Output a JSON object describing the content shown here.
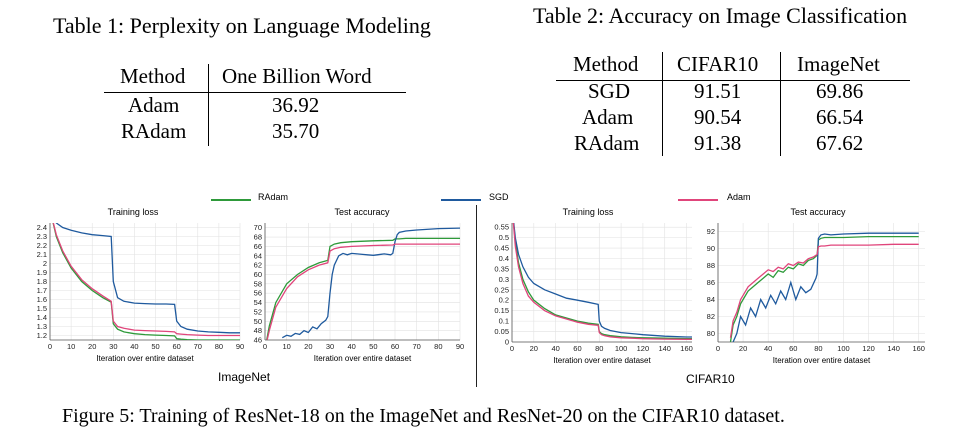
{
  "table1": {
    "caption": "Table 1: Perplexity on Language Modeling",
    "headers": [
      "Method",
      "One Billion Word"
    ],
    "rows": [
      [
        "Adam",
        "36.92"
      ],
      [
        "RAdam",
        "35.70"
      ]
    ]
  },
  "table2": {
    "caption": "Table 2: Accuracy on Image Classification",
    "headers": [
      "Method",
      "CIFAR10",
      "ImageNet"
    ],
    "rows": [
      [
        "SGD",
        "91.51",
        "69.86"
      ],
      [
        "Adam",
        "90.54",
        "66.54"
      ],
      [
        "RAdam",
        "91.38",
        "67.62"
      ]
    ]
  },
  "legend": [
    {
      "name": "RAdam",
      "color": "#2e9a3a"
    },
    {
      "name": "SGD",
      "color": "#1f5a9e"
    },
    {
      "name": "Adam",
      "color": "#e0457b"
    }
  ],
  "group_labels": {
    "imagenet": "ImageNet",
    "cifar": "CIFAR10"
  },
  "figure_caption": "Figure 5: Training of ResNet-18 on the ImageNet and ResNet-20 on the CIFAR10 dataset.",
  "chart_data": [
    {
      "type": "line",
      "title": "Training loss",
      "xlabel": "Iteration over entire dataset",
      "ylabel": "",
      "xlim": [
        0,
        90
      ],
      "ylim": [
        1.15,
        2.45
      ],
      "xticks": [
        "0",
        "10",
        "20",
        "30",
        "40",
        "50",
        "60",
        "70",
        "80",
        "90"
      ],
      "yticks": [
        "1.2",
        "1.3",
        "1.4",
        "1.5",
        "1.6",
        "1.7",
        "1.8",
        "1.9",
        "2",
        "2.1",
        "2.2",
        "2.3",
        "2.4"
      ],
      "grid": true,
      "series": [
        {
          "name": "RAdam",
          "color": "#2e9a3a",
          "x": [
            0,
            3,
            6,
            10,
            15,
            20,
            25,
            29,
            30,
            32,
            35,
            40,
            45,
            50,
            55,
            59,
            60,
            62,
            65,
            70,
            75,
            80,
            85,
            90
          ],
          "y": [
            2.6,
            2.3,
            2.12,
            1.95,
            1.8,
            1.7,
            1.62,
            1.57,
            1.33,
            1.27,
            1.24,
            1.22,
            1.21,
            1.205,
            1.2,
            1.195,
            1.165,
            1.16,
            1.155,
            1.15,
            1.15,
            1.15,
            1.15,
            1.15
          ]
        },
        {
          "name": "SGD",
          "color": "#1f5a9e",
          "x": [
            0,
            3,
            6,
            10,
            15,
            20,
            25,
            29,
            30,
            32,
            35,
            40,
            45,
            50,
            55,
            59,
            60,
            62,
            65,
            70,
            75,
            80,
            85,
            90
          ],
          "y": [
            2.6,
            2.45,
            2.4,
            2.37,
            2.34,
            2.32,
            2.31,
            2.3,
            1.8,
            1.62,
            1.58,
            1.56,
            1.555,
            1.55,
            1.55,
            1.545,
            1.36,
            1.3,
            1.27,
            1.25,
            1.24,
            1.235,
            1.23,
            1.23
          ]
        },
        {
          "name": "Adam",
          "color": "#e0457b",
          "x": [
            0,
            3,
            6,
            10,
            15,
            20,
            25,
            29,
            30,
            32,
            35,
            40,
            45,
            50,
            55,
            59,
            60,
            62,
            65,
            70,
            75,
            80,
            85,
            90
          ],
          "y": [
            2.6,
            2.32,
            2.14,
            1.97,
            1.82,
            1.72,
            1.64,
            1.58,
            1.36,
            1.3,
            1.28,
            1.26,
            1.255,
            1.25,
            1.245,
            1.24,
            1.22,
            1.215,
            1.21,
            1.205,
            1.2,
            1.2,
            1.2,
            1.2
          ]
        }
      ]
    },
    {
      "type": "line",
      "title": "Test accuracy",
      "xlabel": "Iteration over entire dataset",
      "ylabel": "",
      "xlim": [
        0,
        90
      ],
      "ylim": [
        46,
        71
      ],
      "xticks": [
        "0",
        "10",
        "20",
        "30",
        "40",
        "50",
        "60",
        "70",
        "80",
        "90"
      ],
      "yticks": [
        "46",
        "48",
        "50",
        "52",
        "54",
        "56",
        "58",
        "60",
        "62",
        "64",
        "66",
        "68",
        "70"
      ],
      "grid": true,
      "series": [
        {
          "name": "RAdam",
          "color": "#2e9a3a",
          "x": [
            0,
            2,
            5,
            10,
            15,
            20,
            25,
            29,
            30,
            32,
            35,
            40,
            50,
            59,
            60,
            62,
            65,
            70,
            80,
            90
          ],
          "y": [
            44,
            49,
            54,
            58,
            60,
            61.5,
            62.5,
            63,
            66,
            66.5,
            66.8,
            67,
            67.2,
            67.3,
            67.6,
            67.6,
            67.7,
            67.7,
            67.7,
            67.7
          ]
        },
        {
          "name": "SGD",
          "color": "#1f5a9e",
          "x": [
            8,
            10,
            12,
            14,
            16,
            18,
            20,
            22,
            24,
            26,
            28,
            29,
            30,
            31,
            32,
            34,
            36,
            38,
            40,
            45,
            50,
            55,
            58,
            59,
            60,
            61,
            62,
            65,
            70,
            80,
            90
          ],
          "y": [
            46.5,
            47,
            46.8,
            47.4,
            47.2,
            48,
            47.6,
            48.8,
            48.4,
            49.5,
            50.2,
            51,
            56,
            60,
            62,
            64,
            64.5,
            64.2,
            64.5,
            64.3,
            64.1,
            64.4,
            64.2,
            64.5,
            67,
            68.5,
            69,
            69.3,
            69.5,
            69.8,
            69.9
          ]
        },
        {
          "name": "Adam",
          "color": "#e0457b",
          "x": [
            0,
            2,
            5,
            10,
            15,
            20,
            25,
            29,
            30,
            32,
            35,
            40,
            50,
            59,
            60,
            62,
            65,
            70,
            80,
            90
          ],
          "y": [
            44,
            48,
            53,
            57,
            59.5,
            61,
            62,
            62.5,
            65,
            65.5,
            65.8,
            66,
            66.2,
            66.3,
            66.5,
            66.5,
            66.5,
            66.5,
            66.5,
            66.5
          ]
        }
      ]
    },
    {
      "type": "line",
      "title": "Training loss",
      "xlabel": "Iteration over entire dataset",
      "ylabel": "",
      "xlim": [
        0,
        165
      ],
      "ylim": [
        0,
        0.57
      ],
      "xticks": [
        "0",
        "20",
        "40",
        "60",
        "80",
        "100",
        "120",
        "140",
        "160"
      ],
      "yticks": [
        "0",
        "0.05",
        "0.1",
        "0.15",
        "0.2",
        "0.25",
        "0.3",
        "0.35",
        "0.4",
        "0.45",
        "0.5",
        "0.55"
      ],
      "grid": true,
      "series": [
        {
          "name": "RAdam",
          "color": "#2e9a3a",
          "x": [
            0,
            3,
            6,
            10,
            15,
            20,
            30,
            40,
            50,
            60,
            70,
            79,
            80,
            82,
            85,
            90,
            100,
            110,
            120,
            140,
            160,
            165
          ],
          "y": [
            0.65,
            0.48,
            0.38,
            0.3,
            0.24,
            0.2,
            0.16,
            0.13,
            0.115,
            0.1,
            0.09,
            0.085,
            0.05,
            0.04,
            0.035,
            0.03,
            0.025,
            0.022,
            0.02,
            0.018,
            0.016,
            0.016
          ]
        },
        {
          "name": "SGD",
          "color": "#1f5a9e",
          "x": [
            0,
            3,
            6,
            10,
            15,
            20,
            30,
            40,
            50,
            60,
            70,
            79,
            80,
            82,
            85,
            90,
            100,
            110,
            120,
            140,
            160,
            165
          ],
          "y": [
            0.65,
            0.5,
            0.42,
            0.36,
            0.31,
            0.28,
            0.25,
            0.23,
            0.21,
            0.2,
            0.19,
            0.18,
            0.1,
            0.075,
            0.065,
            0.055,
            0.045,
            0.04,
            0.035,
            0.028,
            0.024,
            0.024
          ]
        },
        {
          "name": "Adam",
          "color": "#e0457b",
          "x": [
            0,
            3,
            6,
            10,
            15,
            20,
            30,
            40,
            50,
            60,
            70,
            79,
            80,
            82,
            85,
            90,
            100,
            110,
            120,
            140,
            160,
            165
          ],
          "y": [
            0.65,
            0.46,
            0.36,
            0.28,
            0.22,
            0.19,
            0.15,
            0.125,
            0.11,
            0.095,
            0.085,
            0.08,
            0.045,
            0.035,
            0.03,
            0.025,
            0.02,
            0.018,
            0.016,
            0.014,
            0.013,
            0.013
          ]
        }
      ]
    },
    {
      "type": "line",
      "title": "Test accuracy",
      "xlabel": "Iteration over entire dataset",
      "ylabel": "",
      "xlim": [
        0,
        165
      ],
      "ylim": [
        79,
        93
      ],
      "xticks": [
        "0",
        "20",
        "40",
        "60",
        "80",
        "100",
        "120",
        "140",
        "160"
      ],
      "yticks": [
        "80",
        "82",
        "84",
        "86",
        "88",
        "90",
        "92"
      ],
      "grid": true,
      "series": [
        {
          "name": "RAdam",
          "color": "#2e9a3a",
          "x": [
            10,
            12,
            15,
            18,
            20,
            24,
            28,
            32,
            36,
            40,
            44,
            48,
            52,
            56,
            60,
            64,
            68,
            72,
            76,
            79,
            80,
            82,
            85,
            90,
            100,
            120,
            140,
            160
          ],
          "y": [
            79,
            81,
            82,
            83.5,
            84,
            85,
            85.5,
            86,
            86.5,
            87,
            86.6,
            87.4,
            87.2,
            87.8,
            87.6,
            88.2,
            88,
            88.6,
            88.8,
            89.2,
            91,
            91.2,
            91.3,
            91.3,
            91.3,
            91.4,
            91.4,
            91.4
          ]
        },
        {
          "name": "SGD",
          "color": "#1f5a9e",
          "x": [
            12,
            15,
            18,
            22,
            26,
            30,
            34,
            38,
            42,
            46,
            50,
            54,
            58,
            62,
            66,
            70,
            74,
            78,
            79,
            80,
            82,
            85,
            90,
            100,
            120,
            140,
            160
          ],
          "y": [
            79,
            80,
            82,
            81,
            83,
            82,
            84,
            83,
            84.5,
            83.5,
            85,
            84,
            86,
            84,
            85.5,
            84.8,
            85.2,
            86.5,
            87,
            91.2,
            91.6,
            91.7,
            91.6,
            91.7,
            91.8,
            91.8,
            91.8
          ]
        },
        {
          "name": "Adam",
          "color": "#e0457b",
          "x": [
            10,
            12,
            15,
            18,
            20,
            24,
            28,
            32,
            36,
            40,
            44,
            48,
            52,
            56,
            60,
            64,
            68,
            72,
            76,
            79,
            80,
            82,
            85,
            90,
            100,
            120,
            140,
            160
          ],
          "y": [
            79.5,
            81.5,
            82.5,
            84,
            84.5,
            85.5,
            86,
            86.5,
            87,
            87.5,
            87.3,
            87.8,
            87.6,
            88.2,
            88,
            88.4,
            88.3,
            88.8,
            89,
            89.3,
            90.2,
            90.3,
            90.3,
            90.4,
            90.4,
            90.4,
            90.5,
            90.5
          ]
        }
      ]
    }
  ]
}
